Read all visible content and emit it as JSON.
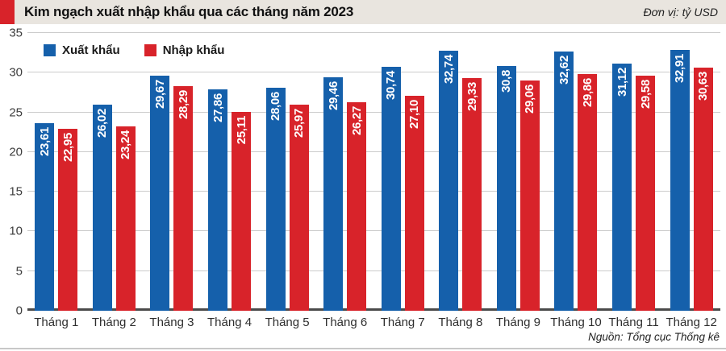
{
  "header": {
    "title": "Kim ngạch xuất nhập khẩu qua các tháng năm 2023",
    "unit_label": "Đơn vị: tỷ USD"
  },
  "footer": {
    "source": "Nguồn: Tổng cục Thống kê"
  },
  "colors": {
    "export_blue": "#1560AB",
    "import_red": "#D8232A",
    "title_strip_bg": "#E9E5DF",
    "accent_red": "#D8232A",
    "gridline": "#CBCBCB",
    "axis_line": "#4A4A4A",
    "value_label_text": "#FFFFFF"
  },
  "chart_data": {
    "type": "bar",
    "title": "Kim ngạch xuất nhập khẩu qua các tháng năm 2023",
    "unit": "tỷ USD",
    "categories": [
      "Tháng 1",
      "Tháng 2",
      "Tháng 3",
      "Tháng 4",
      "Tháng 5",
      "Tháng 6",
      "Tháng 7",
      "Tháng 8",
      "Tháng 9",
      "Tháng 10",
      "Tháng 11",
      "Tháng 12"
    ],
    "series": [
      {
        "name": "Xuất khẩu",
        "color": "#1560AB",
        "values": [
          23.61,
          26.02,
          29.67,
          27.86,
          28.06,
          29.46,
          30.74,
          32.74,
          30.8,
          32.62,
          31.12,
          32.91
        ],
        "labels": [
          "23,61",
          "26,02",
          "29,67",
          "27,86",
          "28,06",
          "29,46",
          "30,74",
          "32,74",
          "30,8",
          "32,62",
          "31,12",
          "32,91"
        ]
      },
      {
        "name": "Nhập khẩu",
        "color": "#D8232A",
        "values": [
          22.95,
          23.24,
          28.29,
          25.11,
          25.97,
          26.27,
          27.1,
          29.33,
          29.06,
          29.86,
          29.58,
          30.63
        ],
        "labels": [
          "22,95",
          "23,24",
          "28,29",
          "25,11",
          "25,97",
          "26,27",
          "27,10",
          "29,33",
          "29,06",
          "29,86",
          "29,58",
          "30,63"
        ]
      }
    ],
    "ylim": [
      0,
      35
    ],
    "yticks": [
      0,
      5,
      10,
      15,
      20,
      25,
      30,
      35
    ],
    "grid": true,
    "legend_position": "top-left",
    "value_labels": "rotated-vertical-inside-bar-top"
  }
}
